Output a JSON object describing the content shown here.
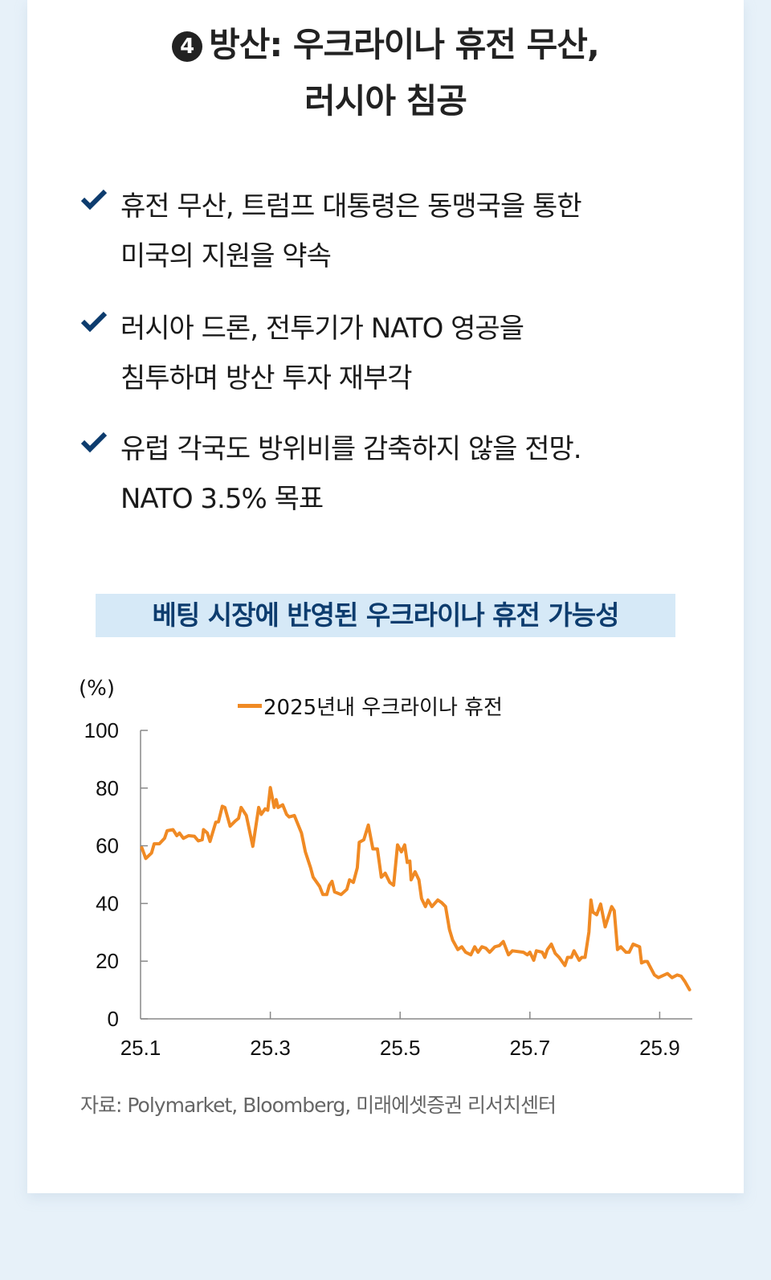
{
  "header": {
    "number": "4",
    "title_line1": "방산: 우크라이나 휴전 무산,",
    "title_line2": "러시아 침공"
  },
  "bullets": [
    {
      "icon": "check-icon",
      "lines": [
        "휴전 무산, 트럼프 대통령은 동맹국을 통한",
        "미국의 지원을 약속"
      ]
    },
    {
      "icon": "check-icon",
      "lines": [
        "러시아 드론, 전투기가 NATO 영공을",
        "침투하며 방산 투자 재부각"
      ]
    },
    {
      "icon": "check-icon",
      "lines": [
        "유럽 각국도 방위비를 감축하지 않을 전망.",
        "NATO 3.5% 목표"
      ]
    }
  ],
  "colors": {
    "accent_navy": "#0d3c6e",
    "title_highlight": "#d6e9f7",
    "series": "#f08a24",
    "background": "#e7f1f9"
  },
  "chart_data": {
    "type": "line",
    "title": "베팅 시장에 반영된 우크라이나 휴전 가능성",
    "ylabel": "(%)",
    "ylim": [
      0,
      100
    ],
    "yticks": [
      0,
      20,
      40,
      60,
      80,
      100
    ],
    "x_unit": "month of 2025",
    "xticks": [
      1,
      3,
      5,
      7,
      9
    ],
    "xtick_labels": [
      "25.1",
      "25.3",
      "25.5",
      "25.7",
      "25.9"
    ],
    "legend_position": "top-center",
    "grid": false,
    "series": [
      {
        "name": "2025년내 우크라이나 휴전",
        "color": "#f08a24",
        "x": [
          1.02,
          1.08,
          1.17,
          1.21,
          1.29,
          1.37,
          1.41,
          1.5,
          1.56,
          1.6,
          1.66,
          1.74,
          1.83,
          1.89,
          1.95,
          1.97,
          2.03,
          2.07,
          2.16,
          2.2,
          2.26,
          2.3,
          2.38,
          2.46,
          2.51,
          2.55,
          2.63,
          2.73,
          2.82,
          2.86,
          2.92,
          2.96,
          3.0,
          3.06,
          3.09,
          3.12,
          3.19,
          3.25,
          3.29,
          3.37,
          3.48,
          3.54,
          3.62,
          3.66,
          3.76,
          3.81,
          3.87,
          3.91,
          3.95,
          3.99,
          4.09,
          4.18,
          4.22,
          4.28,
          4.34,
          4.37,
          4.44,
          4.51,
          4.58,
          4.65,
          4.71,
          4.77,
          4.84,
          4.9,
          4.96,
          5.02,
          5.07,
          5.11,
          5.15,
          5.17,
          5.23,
          5.29,
          5.33,
          5.39,
          5.43,
          5.49,
          5.58,
          5.64,
          5.7,
          5.76,
          5.81,
          5.89,
          5.95,
          6.01,
          6.09,
          6.15,
          6.2,
          6.26,
          6.32,
          6.38,
          6.46,
          6.53,
          6.59,
          6.67,
          6.73,
          6.9,
          6.96,
          7.0,
          7.06,
          7.1,
          7.19,
          7.23,
          7.27,
          7.33,
          7.39,
          7.45,
          7.54,
          7.58,
          7.64,
          7.68,
          7.76,
          7.8,
          7.85,
          7.91,
          7.94,
          7.97,
          8.03,
          8.09,
          8.16,
          8.26,
          8.3,
          8.35,
          8.4,
          8.48,
          8.53,
          8.59,
          8.69,
          8.72,
          8.77,
          8.81,
          8.92,
          8.98,
          9.12,
          9.19,
          9.27,
          9.33,
          9.39,
          9.46
        ],
        "values": [
          59.3,
          55.6,
          57.5,
          60.7,
          60.7,
          62.6,
          65.2,
          65.6,
          63.5,
          64.4,
          62.6,
          63.5,
          63.3,
          61.7,
          62.1,
          65.6,
          64.4,
          61.5,
          68.2,
          68.3,
          73.7,
          73.3,
          66.8,
          68.6,
          69.5,
          73.3,
          70.5,
          59.8,
          73.3,
          70.9,
          72.8,
          72.3,
          80.2,
          73.3,
          76.0,
          73.3,
          74.2,
          70.9,
          70.0,
          70.5,
          64.4,
          57.9,
          52.4,
          49.1,
          45.9,
          43.1,
          43.1,
          46.3,
          47.7,
          44.0,
          43.1,
          44.9,
          48.2,
          47.3,
          52.4,
          61.2,
          62.1,
          67.2,
          58.9,
          58.9,
          49.1,
          50.5,
          47.3,
          46.3,
          60.3,
          57.9,
          60.3,
          54.2,
          54.7,
          48.2,
          51.0,
          48.2,
          41.7,
          38.9,
          41.2,
          38.9,
          41.2,
          40.3,
          38.9,
          31.0,
          27.3,
          24.0,
          25.0,
          23.1,
          22.2,
          25.0,
          23.1,
          25.0,
          24.5,
          23.1,
          25.0,
          25.4,
          26.8,
          22.2,
          23.6,
          23.1,
          22.2,
          23.1,
          20.3,
          23.6,
          23.1,
          21.3,
          24.0,
          25.9,
          22.7,
          21.3,
          18.5,
          21.3,
          21.3,
          23.6,
          20.3,
          21.3,
          21.3,
          30.1,
          41.2,
          37.0,
          36.1,
          39.8,
          31.9,
          38.9,
          37.5,
          24.0,
          25.0,
          23.1,
          23.1,
          25.9,
          25.0,
          19.4,
          19.9,
          19.9,
          15.2,
          14.3,
          15.7,
          14.3,
          15.2,
          14.8,
          12.9,
          10.1
        ]
      }
    ]
  },
  "source": "자료: Polymarket, Bloomberg, 미래에셋증권 리서치센터"
}
